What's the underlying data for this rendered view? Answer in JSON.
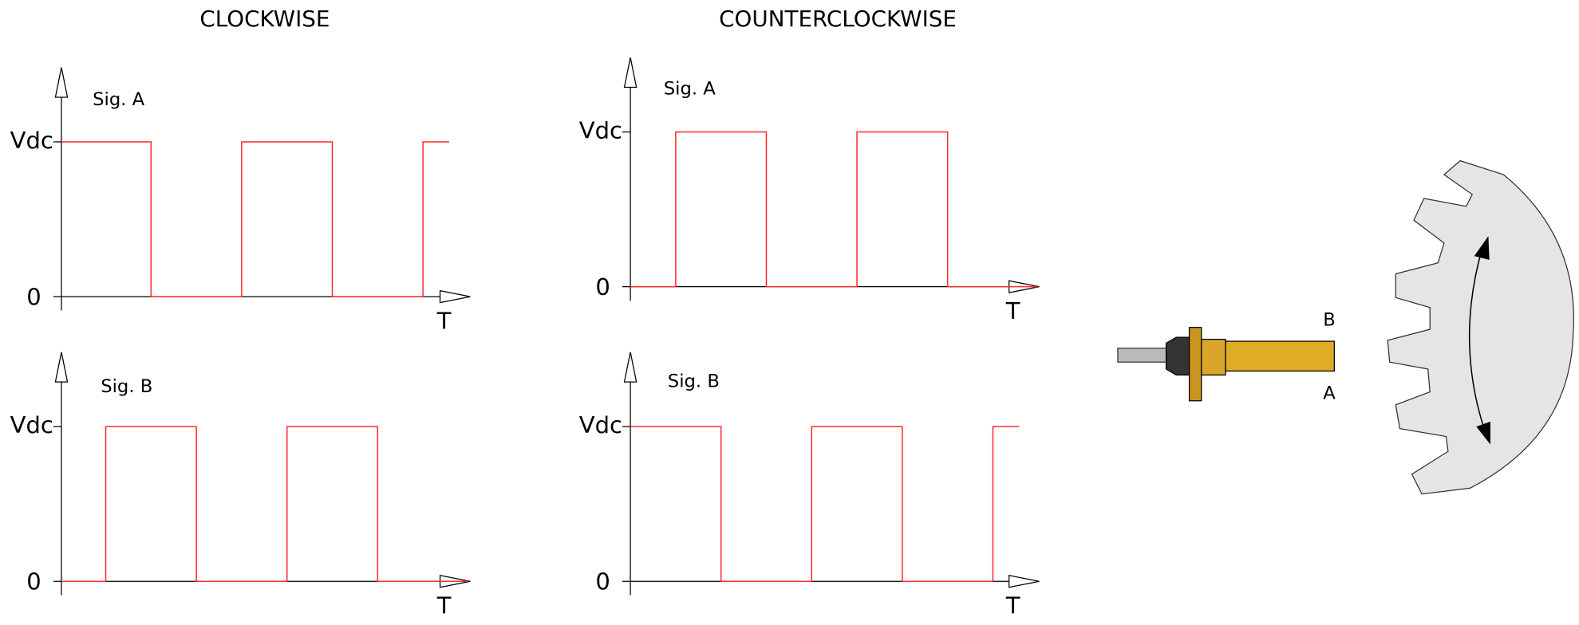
{
  "columns": [
    {
      "title": "CLOCKWISE",
      "plots": [
        {
          "signal": "Sig. A",
          "y_high": "Vdc",
          "y_low": "0",
          "x_axis": "T"
        },
        {
          "signal": "Sig. B",
          "y_high": "Vdc",
          "y_low": "0",
          "x_axis": "T"
        }
      ]
    },
    {
      "title": "COUNTERCLOCKWISE",
      "plots": [
        {
          "signal": "Sig. A",
          "y_high": "Vdc",
          "y_low": "0",
          "x_axis": "T"
        },
        {
          "signal": "Sig. B",
          "y_high": "Vdc",
          "y_low": "0",
          "x_axis": "T"
        }
      ]
    }
  ],
  "sensor": {
    "labels": [
      "B",
      "A"
    ]
  }
}
